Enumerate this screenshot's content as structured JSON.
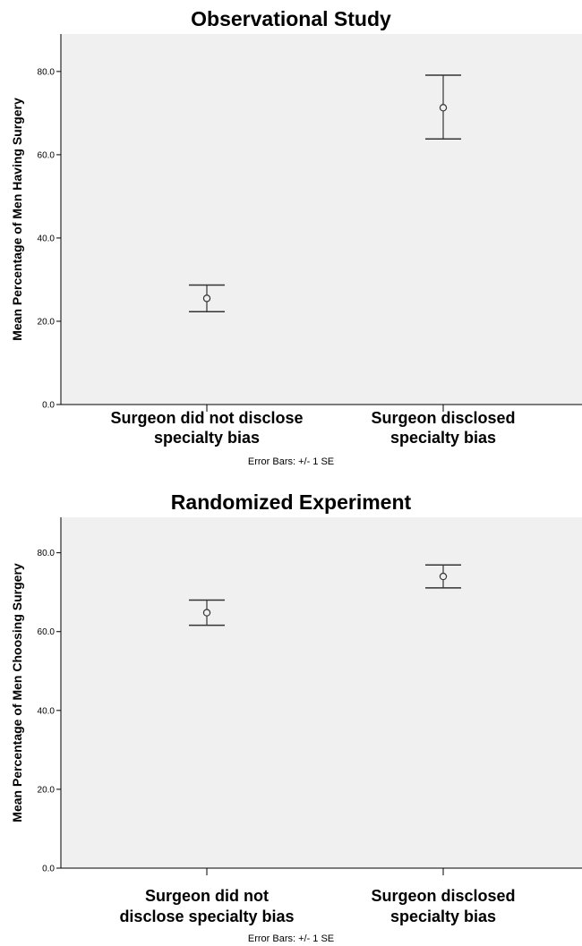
{
  "chart_data": [
    {
      "type": "scatter",
      "title": "Observational Study",
      "ylabel": "Mean Percentage of Men Having Surgery",
      "xlabel": "",
      "categories": [
        "Surgeon did not disclose specialty bias",
        "Surgeon disclosed specialty bias"
      ],
      "category_lines": [
        [
          "Surgeon did not disclose",
          "specialty bias"
        ],
        [
          "Surgeon disclosed",
          "specialty bias"
        ]
      ],
      "values": [
        25.5,
        71.3
      ],
      "error_low": [
        22.3,
        63.8
      ],
      "error_high": [
        28.7,
        79.1
      ],
      "ylim": [
        0,
        89
      ],
      "yticks": [
        "0.0",
        "20.0",
        "40.0",
        "60.0",
        "80.0"
      ],
      "ytick_values": [
        0,
        20,
        40,
        60,
        80
      ],
      "note": "Error Bars: +/- 1 SE",
      "plot_background": "#f0f0f0",
      "grid": false
    },
    {
      "type": "scatter",
      "title": "Randomized Experiment",
      "ylabel": "Mean Percentage of Men Choosing Surgery",
      "xlabel": "",
      "categories": [
        "Surgeon did not disclose specialty bias",
        "Surgeon disclosed specialty bias"
      ],
      "category_lines": [
        [
          "Surgeon did not",
          "disclose specialty bias"
        ],
        [
          "Surgeon disclosed",
          "specialty bias"
        ]
      ],
      "values": [
        64.8,
        74.0
      ],
      "error_low": [
        61.6,
        71.1
      ],
      "error_high": [
        68.0,
        76.9
      ],
      "ylim": [
        0,
        89
      ],
      "yticks": [
        "0.0",
        "20.0",
        "40.0",
        "60.0",
        "80.0"
      ],
      "ytick_values": [
        0,
        20,
        40,
        60,
        80
      ],
      "note": "Error Bars: +/- 1 SE",
      "plot_background": "#f0f0f0",
      "grid": false
    }
  ]
}
